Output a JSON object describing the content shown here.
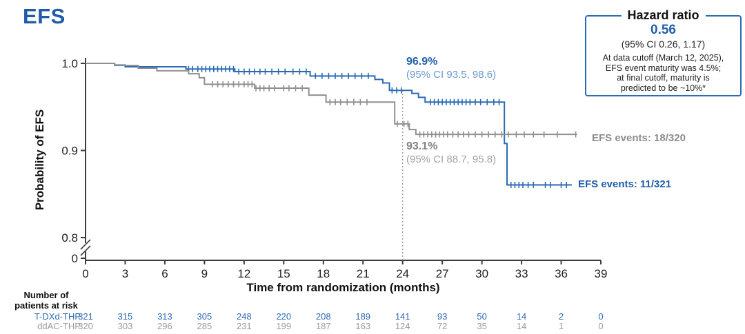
{
  "title": "EFS",
  "colors": {
    "blue": "#2B6AB3",
    "blue_dark": "#1E5CA9",
    "blue_light": "#6B97D1",
    "gray": "#8F8F8F",
    "gray_text": "#8C8C8C",
    "gray_light": "#A3A3A3",
    "axis": "#3C3C3C",
    "landmark_line": "#9A9A9A"
  },
  "hazard_box": {
    "title": "Hazard ratio",
    "value": "0.56",
    "ci": "(95% CI 0.26, 1.17)",
    "note_lines": [
      "At data cutoff (March 12, 2025),",
      "EFS event maturity was 4.5%;",
      "at final cutoff, maturity is",
      "predicted to be ~10%*"
    ]
  },
  "annotations": {
    "tdxd_pct": "96.9%",
    "tdxd_ci": "(95% CI 93.5, 98.6)",
    "ddac_pct": "93.1%",
    "ddac_ci": "(95% CI 88.7, 95.8)",
    "tdxd_events": "EFS events: 11/321",
    "ddac_events": "EFS events: 18/320"
  },
  "axes": {
    "y_label": "Probability of EFS",
    "x_label": "Time from randomization (months)",
    "y_ticks": [
      "1.0",
      "0.9",
      "0.8",
      "0"
    ],
    "x_ticks": [
      0,
      3,
      6,
      9,
      12,
      15,
      18,
      21,
      24,
      27,
      30,
      33,
      36,
      39
    ]
  },
  "chart_data": {
    "type": "line",
    "subtype": "kaplan-meier-step",
    "title": "EFS",
    "xlabel": "Time from randomization (months)",
    "ylabel": "Probability of EFS",
    "xlim": [
      0,
      39
    ],
    "ylim_shown": [
      0.8,
      1.0
    ],
    "y_axis_break": true,
    "landmark_month": 24,
    "series": [
      {
        "name": "T-DXd-THP",
        "color": "#2B6AB3",
        "landmark_estimate": "96.9% (95% CI 93.5, 98.6) at 24 months",
        "events": "11/321",
        "end_month": 36.8,
        "steps": [
          [
            0,
            1.0
          ],
          [
            2.2,
            0.998
          ],
          [
            3.0,
            0.996
          ],
          [
            7.6,
            0.9935
          ],
          [
            11.3,
            0.9905
          ],
          [
            17.0,
            0.9855
          ],
          [
            21.9,
            0.9815
          ],
          [
            22.5,
            0.9775
          ],
          [
            23.0,
            0.969
          ],
          [
            24.7,
            0.9655
          ],
          [
            25.2,
            0.961
          ],
          [
            25.7,
            0.9555
          ],
          [
            31.7,
            0.908
          ],
          [
            31.9,
            0.8605
          ]
        ],
        "censor_months": [
          7.8,
          8.1,
          8.5,
          8.8,
          9.1,
          9.4,
          9.7,
          10.0,
          10.3,
          10.6,
          10.9,
          11.2,
          11.6,
          12.0,
          12.4,
          12.8,
          13.2,
          13.6,
          14.1,
          14.6,
          15.1,
          15.7,
          16.2,
          16.7,
          17.4,
          17.9,
          18.4,
          18.9,
          19.4,
          19.9,
          20.4,
          20.9,
          21.4,
          23.2,
          23.55,
          23.9,
          26.1,
          26.4,
          26.7,
          27.0,
          27.3,
          27.6,
          27.9,
          28.2,
          28.5,
          28.8,
          29.1,
          29.5,
          29.9,
          30.4,
          30.9,
          31.3,
          32.2,
          32.5,
          32.8,
          33.1,
          33.5,
          33.9,
          34.8,
          35.2,
          36.0,
          36.4
        ]
      },
      {
        "name": "ddAC-THP",
        "color": "#8F8F8F",
        "landmark_estimate": "93.1% (95% CI 88.7, 95.8) at 24 months",
        "events": "18/320",
        "end_month": 37.2,
        "steps": [
          [
            0,
            1.0
          ],
          [
            2.2,
            0.9975
          ],
          [
            4.0,
            0.9945
          ],
          [
            5.4,
            0.9915
          ],
          [
            7.8,
            0.988
          ],
          [
            8.6,
            0.9835
          ],
          [
            9.0,
            0.976
          ],
          [
            12.8,
            0.9715
          ],
          [
            16.9,
            0.9635
          ],
          [
            18.2,
            0.9555
          ],
          [
            23.4,
            0.9305
          ],
          [
            24.5,
            0.924
          ],
          [
            25.0,
            0.9185
          ]
        ],
        "censor_months": [
          9.6,
          10.0,
          10.4,
          10.8,
          11.2,
          11.6,
          12.0,
          12.3,
          12.6,
          12.9,
          13.2,
          13.5,
          13.9,
          14.3,
          15.0,
          15.4,
          15.9,
          16.4,
          18.5,
          18.9,
          19.3,
          19.8,
          20.3,
          20.8,
          21.3,
          23.6,
          24.1,
          24.4,
          25.3,
          25.6,
          25.9,
          26.2,
          26.5,
          26.8,
          27.1,
          27.4,
          27.8,
          28.2,
          28.6,
          29.0,
          29.5,
          30.0,
          30.5,
          31.0,
          31.5,
          32.0,
          32.6,
          33.2,
          33.9,
          34.7,
          35.7,
          37.1
        ]
      }
    ]
  },
  "risk_table": {
    "header_line1": "Number of",
    "header_line2": "patients at risk",
    "rows": [
      {
        "label": "T-DXd-THP",
        "color": "#2B6AB3",
        "values": [
          321,
          315,
          313,
          305,
          248,
          220,
          208,
          189,
          141,
          93,
          50,
          14,
          2,
          0
        ]
      },
      {
        "label": "ddAC-THP",
        "color": "#9A9A9A",
        "values": [
          320,
          303,
          296,
          285,
          231,
          199,
          187,
          163,
          124,
          72,
          35,
          14,
          1,
          0
        ]
      }
    ]
  }
}
